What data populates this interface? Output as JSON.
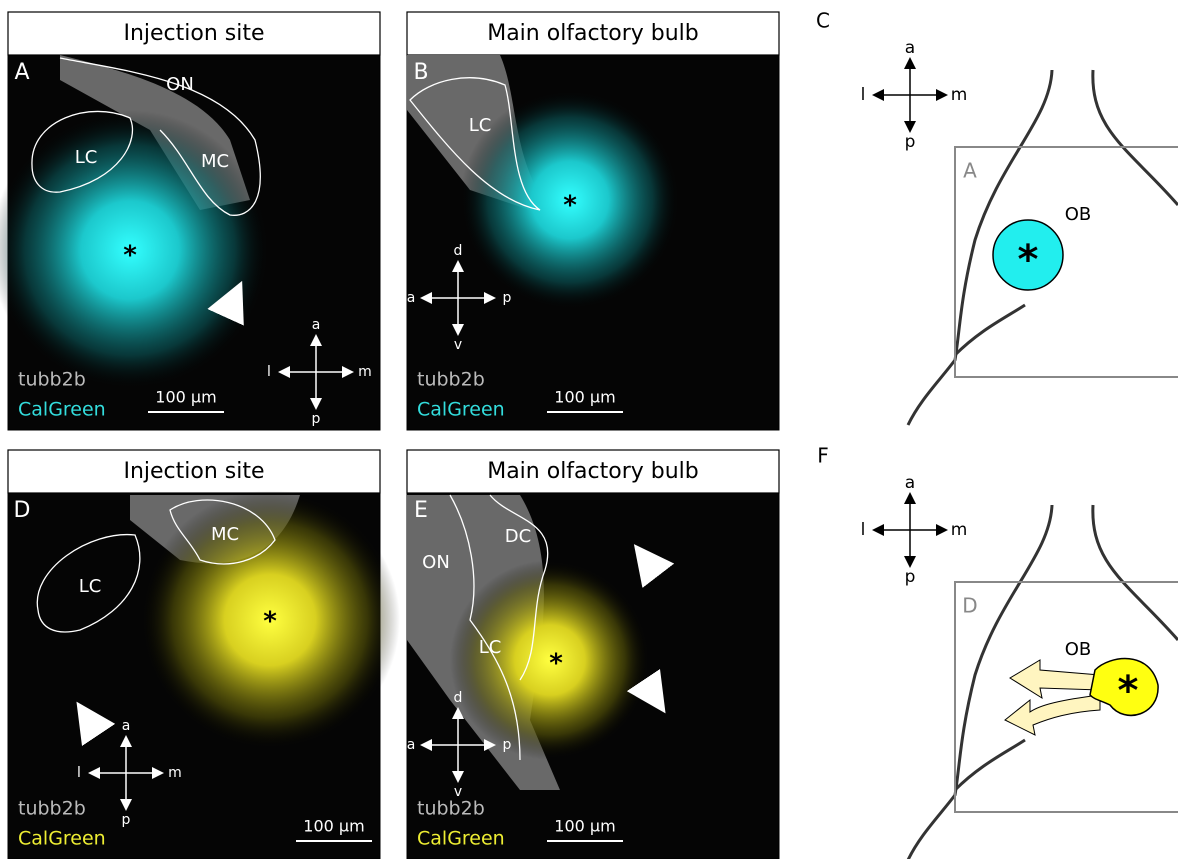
{
  "panels": [
    {
      "letter": "A",
      "title": "Injection site",
      "regions": [
        "ON",
        "LC",
        "MC"
      ],
      "axes": [
        "a",
        "l",
        "m",
        "p"
      ],
      "stains": [
        "tubb2b",
        "CalGreen"
      ],
      "scale": "100 µm",
      "marker": "*"
    },
    {
      "letter": "B",
      "title": "Main olfactory bulb",
      "regions": [
        "LC"
      ],
      "axes": [
        "d",
        "a",
        "p",
        "v"
      ],
      "stains": [
        "tubb2b",
        "CalGreen"
      ],
      "scale": "100 µm",
      "marker": "*"
    },
    {
      "letter": "D",
      "title": "Injection site",
      "regions": [
        "LC",
        "MC"
      ],
      "axes": [
        "a",
        "l",
        "m",
        "p"
      ],
      "stains": [
        "tubb2b",
        "CalGreen"
      ],
      "scale": "100 µm",
      "marker": "*"
    },
    {
      "letter": "E",
      "title": "Main olfactory bulb",
      "regions": [
        "ON",
        "DC",
        "LC"
      ],
      "axes": [
        "d",
        "a",
        "p",
        "v"
      ],
      "stains": [
        "tubb2b",
        "CalGreen"
      ],
      "scale": "100 µm",
      "marker": "*"
    }
  ],
  "schematics": [
    {
      "letter": "C",
      "axes": [
        "a",
        "l",
        "m",
        "p"
      ],
      "frame": "A",
      "label": "OB",
      "marker": "*"
    },
    {
      "letter": "F",
      "axes": [
        "a",
        "l",
        "m",
        "p"
      ],
      "frame": "D",
      "label": "OB",
      "marker": "*"
    }
  ]
}
